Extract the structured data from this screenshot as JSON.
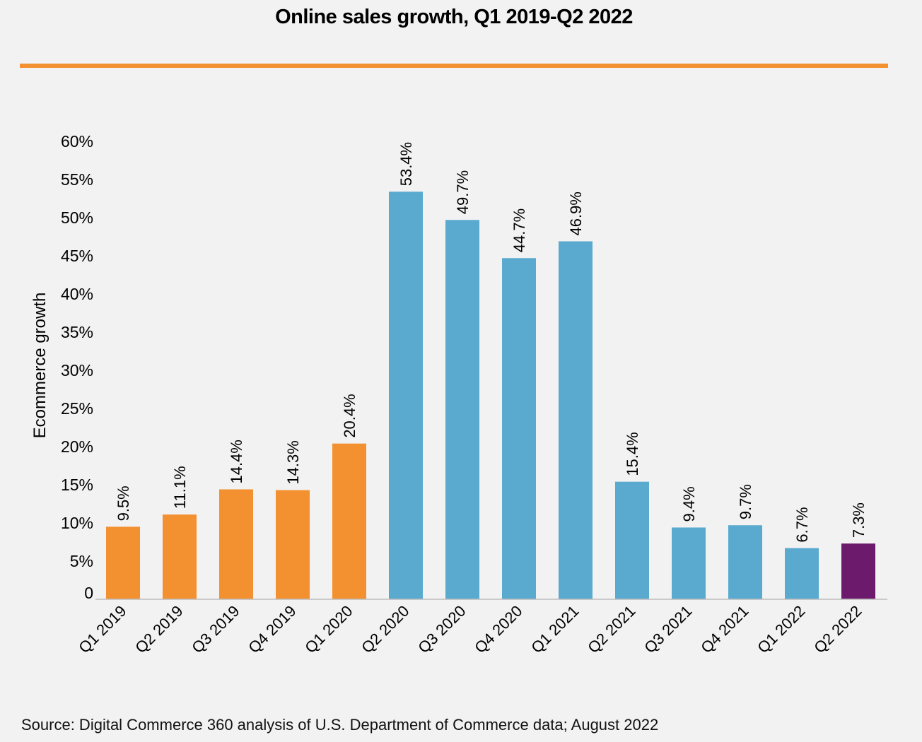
{
  "chart_data": {
    "type": "bar",
    "title": "Online sales growth, Q1 2019-Q2 2022",
    "ylabel": "Ecommerce growth",
    "xlabel": "",
    "ylim": [
      0,
      60
    ],
    "yticks": [
      0,
      5,
      10,
      15,
      20,
      25,
      30,
      35,
      40,
      45,
      50,
      55,
      60
    ],
    "ytick_labels": [
      "0",
      "5%",
      "10%",
      "15%",
      "20%",
      "25%",
      "30%",
      "35%",
      "40%",
      "45%",
      "50%",
      "55%",
      "60%"
    ],
    "categories": [
      "Q1 2019",
      "Q2 2019",
      "Q3 2019",
      "Q4 2019",
      "Q1 2020",
      "Q2 2020",
      "Q3 2020",
      "Q4 2020",
      "Q1 2021",
      "Q2 2021",
      "Q3 2021",
      "Q4 2021",
      "Q1 2022",
      "Q2 2022"
    ],
    "values": [
      9.5,
      11.1,
      14.4,
      14.3,
      20.4,
      53.4,
      49.7,
      44.7,
      46.9,
      15.4,
      9.4,
      9.7,
      6.7,
      7.3
    ],
    "data_labels": [
      "9.5%",
      "11.1%",
      "14.4%",
      "14.3%",
      "20.4%",
      "53.4%",
      "49.7%",
      "44.7%",
      "46.9%",
      "15.4%",
      "9.4%",
      "9.7%",
      "6.7%",
      "7.3%"
    ],
    "bar_colors": [
      "#f39130",
      "#f39130",
      "#f39130",
      "#f39130",
      "#f39130",
      "#5aaad0",
      "#5aaad0",
      "#5aaad0",
      "#5aaad0",
      "#5aaad0",
      "#5aaad0",
      "#5aaad0",
      "#5aaad0",
      "#6c1a6b"
    ],
    "grid": false,
    "legend": "none"
  },
  "colors": {
    "accent_rule": "#f39130",
    "background": "#f2f2f2"
  },
  "source_note": "Source: Digital Commerce 360 analysis of U.S. Department of Commerce data; August 2022"
}
